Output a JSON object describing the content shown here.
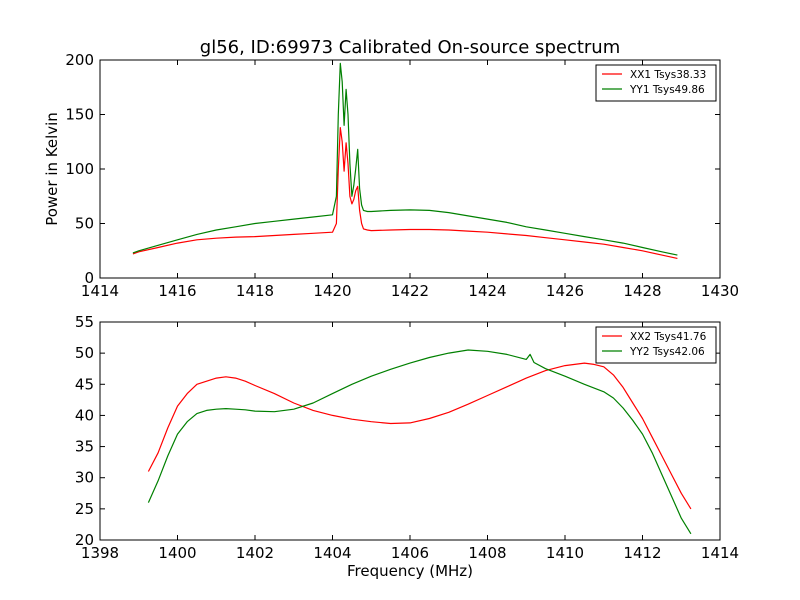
{
  "figure": {
    "title": "gl56, ID:69973 Calibrated On-source spectrum"
  },
  "chart_data": [
    {
      "type": "line",
      "title": "gl56, ID:69973 Calibrated On-source spectrum",
      "xlabel": "",
      "ylabel": "Power in Kelvin",
      "xlim": [
        1414,
        1430
      ],
      "ylim": [
        0,
        200
      ],
      "x_ticks": [
        "1414",
        "1416",
        "1418",
        "1420",
        "1422",
        "1424",
        "1426",
        "1428",
        "1430"
      ],
      "y_ticks": [
        "0",
        "50",
        "100",
        "150",
        "200"
      ],
      "grid": false,
      "legend": "top-right",
      "series": [
        {
          "name": "XX1 Tsys38.33",
          "color": "#ff0000",
          "x": [
            1414.85,
            1415.0,
            1415.5,
            1416.0,
            1416.5,
            1417.0,
            1417.5,
            1418.0,
            1418.5,
            1419.0,
            1419.5,
            1420.0,
            1420.1,
            1420.15,
            1420.2,
            1420.25,
            1420.3,
            1420.35,
            1420.4,
            1420.45,
            1420.5,
            1420.55,
            1420.6,
            1420.65,
            1420.7,
            1420.75,
            1420.8,
            1420.9,
            1421.0,
            1421.5,
            1422.0,
            1422.5,
            1423.0,
            1423.5,
            1424.0,
            1424.5,
            1425.0,
            1425.5,
            1426.0,
            1426.5,
            1427.0,
            1427.5,
            1428.0,
            1428.5,
            1428.9
          ],
          "y": [
            22,
            24,
            28,
            32,
            35,
            36.5,
            37.5,
            38,
            39,
            40,
            41,
            42,
            50,
            100,
            138,
            125,
            98,
            124,
            105,
            75,
            68,
            72,
            80,
            84,
            62,
            50,
            45,
            44,
            43.5,
            44,
            44.5,
            44.5,
            44,
            43,
            42,
            40.5,
            39,
            37,
            35,
            33,
            31,
            28,
            25,
            21,
            18
          ]
        },
        {
          "name": "YY1 Tsys49.86",
          "color": "#008000",
          "x": [
            1414.85,
            1415.0,
            1415.5,
            1416.0,
            1416.5,
            1417.0,
            1417.5,
            1418.0,
            1418.5,
            1419.0,
            1419.5,
            1420.0,
            1420.1,
            1420.15,
            1420.2,
            1420.25,
            1420.3,
            1420.35,
            1420.4,
            1420.45,
            1420.5,
            1420.55,
            1420.6,
            1420.65,
            1420.7,
            1420.75,
            1420.8,
            1420.9,
            1421.0,
            1421.5,
            1422.0,
            1422.5,
            1423.0,
            1423.5,
            1424.0,
            1424.5,
            1425.0,
            1425.5,
            1426.0,
            1426.5,
            1427.0,
            1427.5,
            1428.0,
            1428.5,
            1428.9
          ],
          "y": [
            23,
            25,
            30,
            35,
            40,
            44,
            47,
            50,
            52,
            54,
            56,
            58,
            75,
            150,
            197,
            180,
            140,
            173,
            150,
            105,
            75,
            85,
            100,
            118,
            82,
            67,
            62,
            61,
            61,
            62,
            62.5,
            62,
            60,
            57,
            54,
            51,
            47,
            44,
            41,
            38,
            35,
            32,
            28,
            24,
            21
          ]
        }
      ]
    },
    {
      "type": "line",
      "title": "",
      "xlabel": "Frequency (MHz)",
      "ylabel": "",
      "xlim": [
        1398,
        1414
      ],
      "ylim": [
        20,
        55
      ],
      "x_ticks": [
        "1398",
        "1400",
        "1402",
        "1404",
        "1406",
        "1408",
        "1410",
        "1412",
        "1414"
      ],
      "y_ticks": [
        "20",
        "25",
        "30",
        "35",
        "40",
        "45",
        "50",
        "55"
      ],
      "grid": false,
      "legend": "top-right",
      "series": [
        {
          "name": "XX2 Tsys41.76",
          "color": "#ff0000",
          "x": [
            1399.25,
            1399.5,
            1399.75,
            1400.0,
            1400.25,
            1400.5,
            1400.75,
            1401.0,
            1401.25,
            1401.5,
            1401.75,
            1402.0,
            1402.5,
            1403.0,
            1403.5,
            1404.0,
            1404.5,
            1405.0,
            1405.5,
            1406.0,
            1406.5,
            1407.0,
            1407.5,
            1408.0,
            1408.5,
            1409.0,
            1409.5,
            1410.0,
            1410.5,
            1410.75,
            1411.0,
            1411.25,
            1411.5,
            1411.75,
            1412.0,
            1412.25,
            1412.5,
            1412.75,
            1413.0,
            1413.25
          ],
          "y": [
            31,
            34,
            38,
            41.5,
            43.5,
            45,
            45.5,
            46,
            46.2,
            46,
            45.5,
            44.8,
            43.5,
            42,
            40.8,
            40,
            39.4,
            39,
            38.7,
            38.8,
            39.5,
            40.5,
            41.8,
            43.2,
            44.6,
            46,
            47.2,
            48,
            48.4,
            48.2,
            47.8,
            46.5,
            44.5,
            42,
            39.5,
            36.5,
            33.5,
            30.5,
            27.5,
            25
          ]
        },
        {
          "name": "YY2 Tsys42.06",
          "color": "#008000",
          "x": [
            1399.25,
            1399.5,
            1399.75,
            1400.0,
            1400.25,
            1400.5,
            1400.75,
            1401.0,
            1401.25,
            1401.5,
            1401.75,
            1402.0,
            1402.5,
            1403.0,
            1403.5,
            1404.0,
            1404.5,
            1405.0,
            1405.5,
            1406.0,
            1406.5,
            1407.0,
            1407.5,
            1408.0,
            1408.5,
            1409.0,
            1409.1,
            1409.2,
            1409.5,
            1410.0,
            1410.5,
            1411.0,
            1411.25,
            1411.5,
            1411.75,
            1412.0,
            1412.25,
            1412.5,
            1412.75,
            1413.0,
            1413.25
          ],
          "y": [
            26,
            29.5,
            33.5,
            37,
            39,
            40.3,
            40.8,
            41,
            41.1,
            41,
            40.9,
            40.7,
            40.6,
            41,
            42,
            43.5,
            45,
            46.3,
            47.4,
            48.4,
            49.3,
            50,
            50.5,
            50.3,
            49.8,
            49,
            49.8,
            48.5,
            47.5,
            46.3,
            45,
            43.8,
            42.8,
            41.2,
            39.2,
            37,
            34,
            30.5,
            27,
            23.5,
            21
          ]
        }
      ]
    }
  ]
}
